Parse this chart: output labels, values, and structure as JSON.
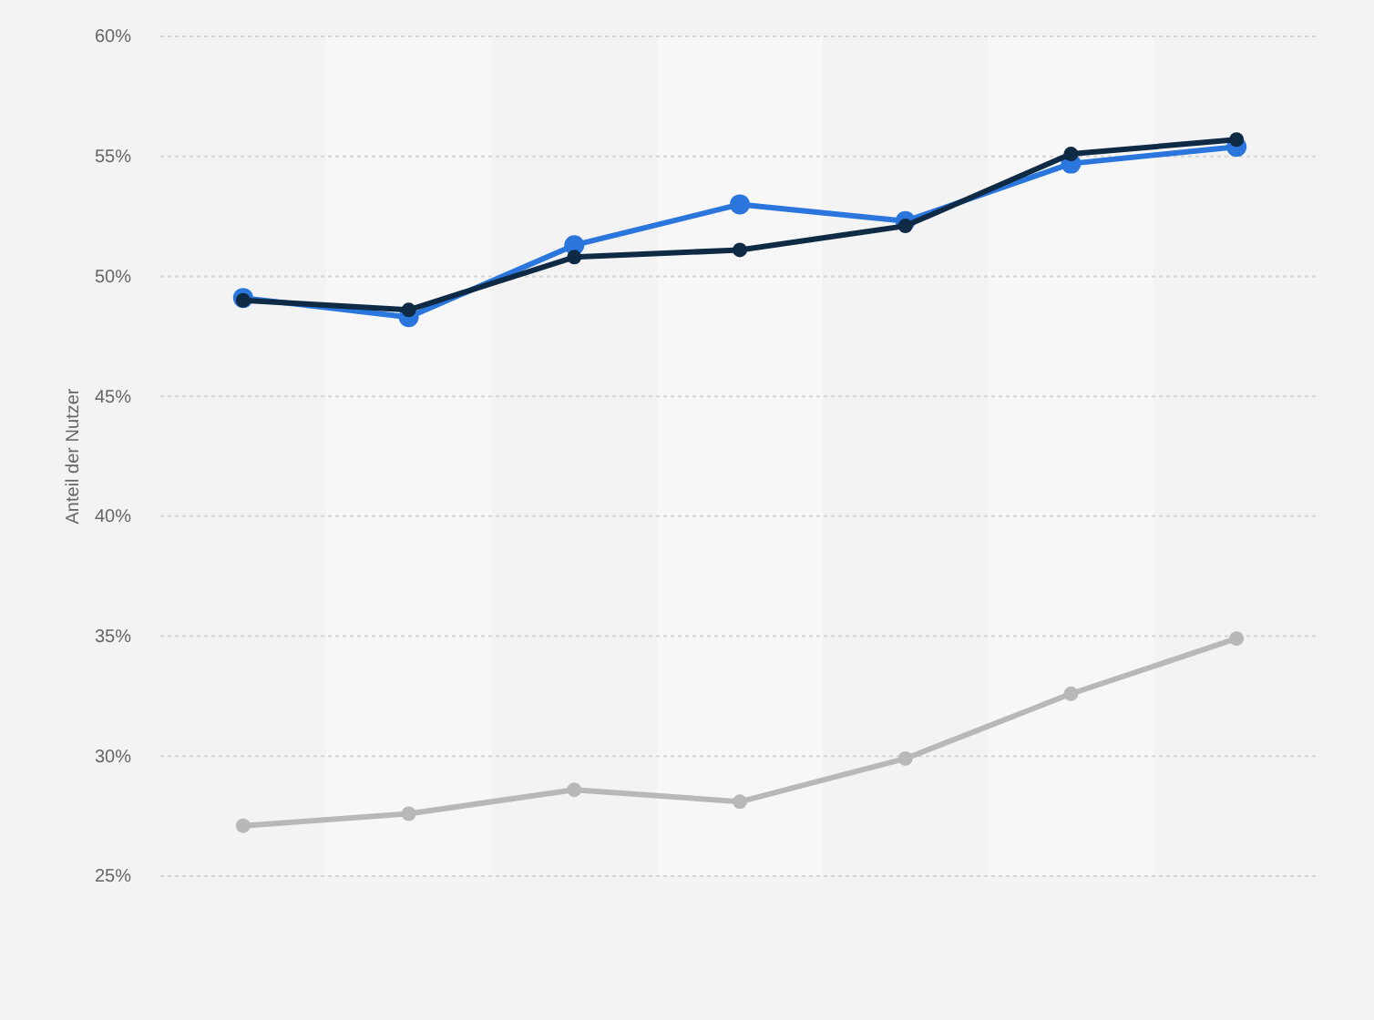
{
  "chart_data": {
    "type": "line",
    "ylabel": "Anteil der Nutzer",
    "categories": [
      null,
      null,
      null,
      null,
      null,
      null,
      null
    ],
    "ylim": [
      25,
      60
    ],
    "yticks": [
      {
        "value": 25,
        "label": "25%"
      },
      {
        "value": 30,
        "label": "30%"
      },
      {
        "value": 35,
        "label": "35%"
      },
      {
        "value": 40,
        "label": "40%"
      },
      {
        "value": 45,
        "label": "45%"
      },
      {
        "value": 50,
        "label": "50%"
      },
      {
        "value": 55,
        "label": "55%"
      },
      {
        "value": 60,
        "label": "60%"
      }
    ],
    "grid": "y",
    "marker": "circle",
    "line_style": "solid",
    "series": [
      {
        "color": "#2a76dd",
        "values": [
          49.1,
          48.3,
          51.3,
          53.0,
          52.3,
          54.7,
          55.4
        ]
      },
      {
        "color": "#0f2a44",
        "values": [
          49.0,
          48.6,
          50.8,
          51.1,
          52.1,
          55.1,
          55.7
        ]
      },
      {
        "color": "#b8b8b8",
        "values": [
          27.1,
          27.6,
          28.6,
          28.1,
          29.9,
          32.6,
          34.9
        ]
      }
    ]
  }
}
